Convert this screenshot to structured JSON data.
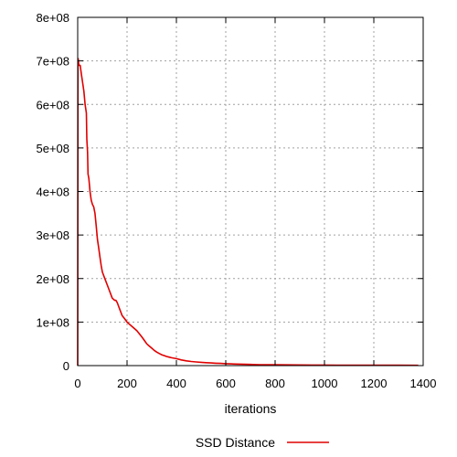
{
  "chart_data": {
    "type": "line",
    "xlabel": "iterations",
    "ylabel": "",
    "xlim": [
      0,
      1400
    ],
    "ylim": [
      0,
      800000000
    ],
    "x_ticks": [
      0,
      200,
      400,
      600,
      800,
      1000,
      1200,
      1400
    ],
    "x_tick_labels": [
      "0",
      "200",
      "400",
      "600",
      "800",
      "1000",
      "1200",
      "1400"
    ],
    "y_ticks": [
      0,
      100000000,
      200000000,
      300000000,
      400000000,
      500000000,
      600000000,
      700000000,
      800000000
    ],
    "y_tick_labels": [
      "0",
      "1e+08",
      "2e+08",
      "3e+08",
      "4e+08",
      "5e+08",
      "6e+08",
      "7e+08",
      "8e+08"
    ],
    "grid": true,
    "legend_position": "bottom",
    "series": [
      {
        "name": "SSD Distance",
        "color": "#e00000",
        "x": [
          0,
          1,
          2,
          5,
          10,
          15,
          20,
          25,
          30,
          35,
          37,
          40,
          42,
          45,
          50,
          55,
          60,
          65,
          70,
          75,
          80,
          85,
          90,
          95,
          100,
          110,
          120,
          130,
          140,
          150,
          155,
          160,
          170,
          180,
          190,
          200,
          210,
          220,
          230,
          240,
          250,
          260,
          270,
          280,
          290,
          300,
          310,
          320,
          330,
          340,
          350,
          360,
          370,
          380,
          390,
          400,
          420,
          440,
          460,
          480,
          500,
          520,
          540,
          560,
          580,
          600,
          620,
          640,
          660,
          680,
          700,
          720,
          740,
          760,
          800,
          850,
          900,
          950,
          1000,
          1050,
          1100,
          1200,
          1300,
          1380
        ],
        "y": [
          0,
          700000000,
          705000000,
          690000000,
          690000000,
          670000000,
          650000000,
          630000000,
          600000000,
          580000000,
          520000000,
          490000000,
          440000000,
          430000000,
          400000000,
          380000000,
          370000000,
          365000000,
          350000000,
          320000000,
          290000000,
          270000000,
          250000000,
          230000000,
          215000000,
          200000000,
          185000000,
          170000000,
          155000000,
          150000000,
          150000000,
          145000000,
          130000000,
          115000000,
          108000000,
          100000000,
          95000000,
          90000000,
          85000000,
          80000000,
          73000000,
          66000000,
          58000000,
          50000000,
          45000000,
          40000000,
          35000000,
          31000000,
          28000000,
          25000000,
          23000000,
          21000000,
          19500000,
          18000000,
          17000000,
          16000000,
          13000000,
          11000000,
          9500000,
          8500000,
          7500000,
          6800000,
          6000000,
          5500000,
          5000000,
          4500000,
          4000000,
          3600000,
          3300000,
          3000000,
          2700000,
          2400000,
          2200000,
          2000000,
          1800000,
          1600000,
          1400000,
          1300000,
          1200000,
          1100000,
          1000000,
          900000,
          800000,
          700000
        ]
      }
    ]
  }
}
